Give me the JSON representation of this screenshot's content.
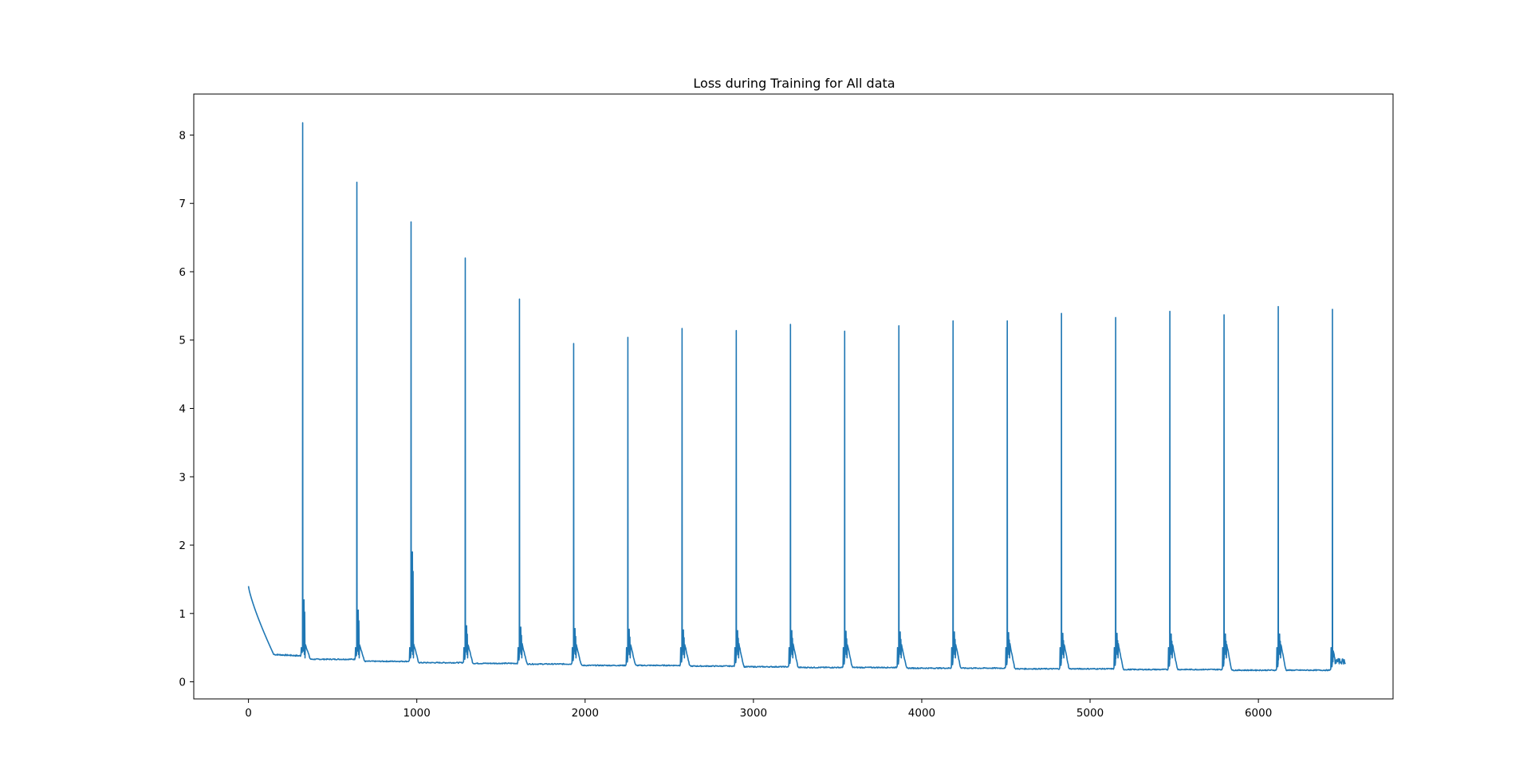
{
  "chart_data": {
    "type": "line",
    "title": "Loss during Training for All data",
    "xlabel": "",
    "ylabel": "",
    "xlim": [
      -325,
      6800
    ],
    "ylim": [
      -0.25,
      8.6
    ],
    "x_ticks": [
      0,
      1000,
      2000,
      3000,
      4000,
      5000,
      6000
    ],
    "y_ticks": [
      0,
      1,
      2,
      3,
      4,
      5,
      6,
      7,
      8
    ],
    "grid": false,
    "legend": "none",
    "color": "#1f77b4",
    "epoch_length": 322,
    "total_steps": 6500,
    "initial_loss": 1.4,
    "epochs": [
      {
        "start": 0,
        "begin_loss": 1.4,
        "baseline": 0.38,
        "spike": null,
        "second_spike": null
      },
      {
        "start": 322,
        "begin_loss": 1.5,
        "baseline": 0.33,
        "spike": 8.18,
        "second_spike": 1.2
      },
      {
        "start": 644,
        "begin_loss": 1.15,
        "baseline": 0.3,
        "spike": 7.31,
        "second_spike": 1.05
      },
      {
        "start": 966,
        "begin_loss": 0.97,
        "baseline": 0.28,
        "spike": 6.73,
        "second_spike": 1.9
      },
      {
        "start": 1288,
        "begin_loss": 0.82,
        "baseline": 0.27,
        "spike": 6.2,
        "second_spike": 0.82
      },
      {
        "start": 1610,
        "begin_loss": 0.8,
        "baseline": 0.26,
        "spike": 5.6,
        "second_spike": 0.8
      },
      {
        "start": 1932,
        "begin_loss": 0.78,
        "baseline": 0.24,
        "spike": 4.95,
        "second_spike": 0.78
      },
      {
        "start": 2254,
        "begin_loss": 0.77,
        "baseline": 0.24,
        "spike": 5.04,
        "second_spike": 0.77
      },
      {
        "start": 2576,
        "begin_loss": 0.76,
        "baseline": 0.23,
        "spike": 5.17,
        "second_spike": 0.76
      },
      {
        "start": 2898,
        "begin_loss": 0.75,
        "baseline": 0.22,
        "spike": 5.14,
        "second_spike": 0.75
      },
      {
        "start": 3220,
        "begin_loss": 0.75,
        "baseline": 0.21,
        "spike": 5.23,
        "second_spike": 0.75
      },
      {
        "start": 3542,
        "begin_loss": 0.74,
        "baseline": 0.21,
        "spike": 5.13,
        "second_spike": 0.74
      },
      {
        "start": 3864,
        "begin_loss": 0.73,
        "baseline": 0.2,
        "spike": 5.21,
        "second_spike": 0.73
      },
      {
        "start": 4186,
        "begin_loss": 0.73,
        "baseline": 0.2,
        "spike": 5.28,
        "second_spike": 0.73
      },
      {
        "start": 4508,
        "begin_loss": 0.72,
        "baseline": 0.19,
        "spike": 5.28,
        "second_spike": 0.72
      },
      {
        "start": 4830,
        "begin_loss": 0.71,
        "baseline": 0.19,
        "spike": 5.39,
        "second_spike": 0.71
      },
      {
        "start": 5152,
        "begin_loss": 0.71,
        "baseline": 0.18,
        "spike": 5.33,
        "second_spike": 0.71
      },
      {
        "start": 5474,
        "begin_loss": 0.7,
        "baseline": 0.18,
        "spike": 5.42,
        "second_spike": 0.7
      },
      {
        "start": 5796,
        "begin_loss": 0.7,
        "baseline": 0.17,
        "spike": 5.37,
        "second_spike": 0.7
      },
      {
        "start": 6118,
        "begin_loss": 0.7,
        "baseline": 0.17,
        "spike": 5.49,
        "second_spike": 0.7
      },
      {
        "start": 6440,
        "begin_loss": 0.42,
        "baseline": 0.17,
        "spike": 5.45,
        "second_spike": 0.42
      }
    ]
  }
}
